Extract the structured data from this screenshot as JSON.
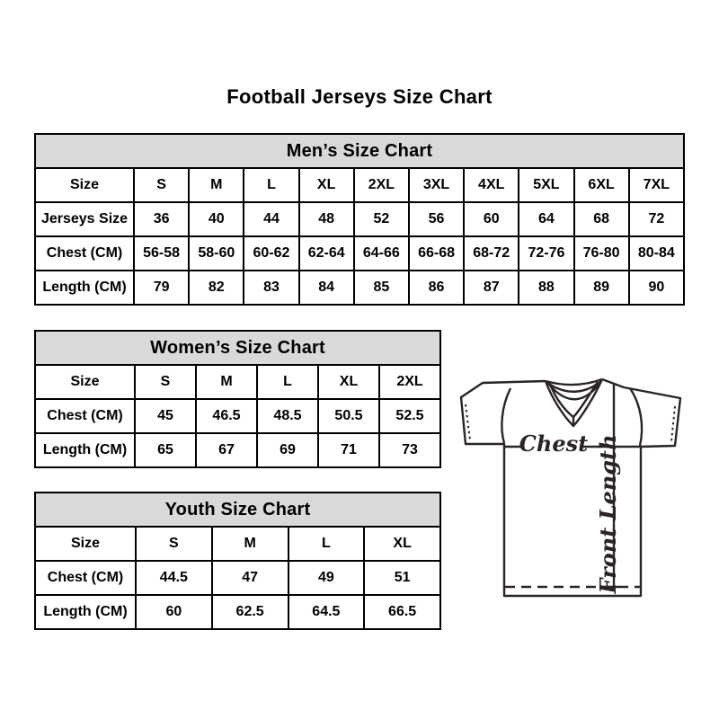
{
  "page": {
    "title": "Football Jerseys Size Chart"
  },
  "jersey_diagram": {
    "chest_label": "Chest",
    "front_length_label": "Front Length"
  },
  "colors": {
    "table_header_bg": "#d9d9d9",
    "table_border": "#000000",
    "diagram_line": "#2a2424",
    "text": "#000000"
  },
  "chart_data": [
    {
      "type": "table",
      "title": "Men’s Size Chart",
      "rows": [
        {
          "label": "Size",
          "values": [
            "S",
            "M",
            "L",
            "XL",
            "2XL",
            "3XL",
            "4XL",
            "5XL",
            "6XL",
            "7XL"
          ]
        },
        {
          "label": "Jerseys Size",
          "values": [
            "36",
            "40",
            "44",
            "48",
            "52",
            "56",
            "60",
            "64",
            "68",
            "72"
          ]
        },
        {
          "label": "Chest (CM)",
          "values": [
            "56-58",
            "58-60",
            "60-62",
            "62-64",
            "64-66",
            "66-68",
            "68-72",
            "72-76",
            "76-80",
            "80-84"
          ]
        },
        {
          "label": "Length (CM)",
          "values": [
            "79",
            "82",
            "83",
            "84",
            "85",
            "86",
            "87",
            "88",
            "89",
            "90"
          ]
        }
      ]
    },
    {
      "type": "table",
      "title": "Women’s Size Chart",
      "rows": [
        {
          "label": "Size",
          "values": [
            "S",
            "M",
            "L",
            "XL",
            "2XL"
          ]
        },
        {
          "label": "Chest (CM)",
          "values": [
            "45",
            "46.5",
            "48.5",
            "50.5",
            "52.5"
          ]
        },
        {
          "label": "Length (CM)",
          "values": [
            "65",
            "67",
            "69",
            "71",
            "73"
          ]
        }
      ]
    },
    {
      "type": "table",
      "title": "Youth Size Chart",
      "rows": [
        {
          "label": "Size",
          "values": [
            "S",
            "M",
            "L",
            "XL"
          ]
        },
        {
          "label": "Chest (CM)",
          "values": [
            "44.5",
            "47",
            "49",
            "51"
          ]
        },
        {
          "label": "Length (CM)",
          "values": [
            "60",
            "62.5",
            "64.5",
            "66.5"
          ]
        }
      ]
    }
  ]
}
